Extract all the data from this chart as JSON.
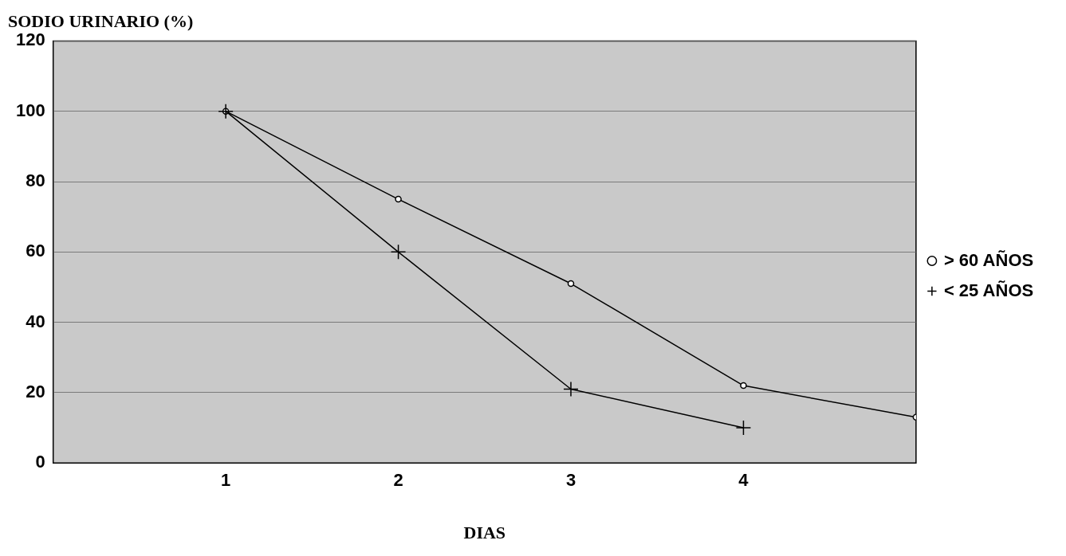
{
  "chart_data": {
    "type": "line",
    "ylabel": "SODIO URINARIO (%)",
    "xlabel": "DIAS",
    "x": [
      1,
      2,
      3,
      4,
      5
    ],
    "series": [
      {
        "name": "> 60 AÑOS",
        "color": "#000000",
        "marker": "circle",
        "values": [
          100,
          75,
          51,
          22,
          13
        ]
      },
      {
        "name": "< 25 AÑOS",
        "color": "#000000",
        "marker": "cross",
        "values": [
          100,
          60,
          21,
          10,
          null
        ]
      }
    ],
    "xlim": [
      0,
      5
    ],
    "xticks": [
      1,
      2,
      3,
      4
    ],
    "ylim": [
      0,
      120
    ],
    "yticks": [
      0,
      20,
      40,
      60,
      80,
      100,
      120
    ],
    "grid": "y",
    "legend": "right",
    "line_style": "solid"
  }
}
